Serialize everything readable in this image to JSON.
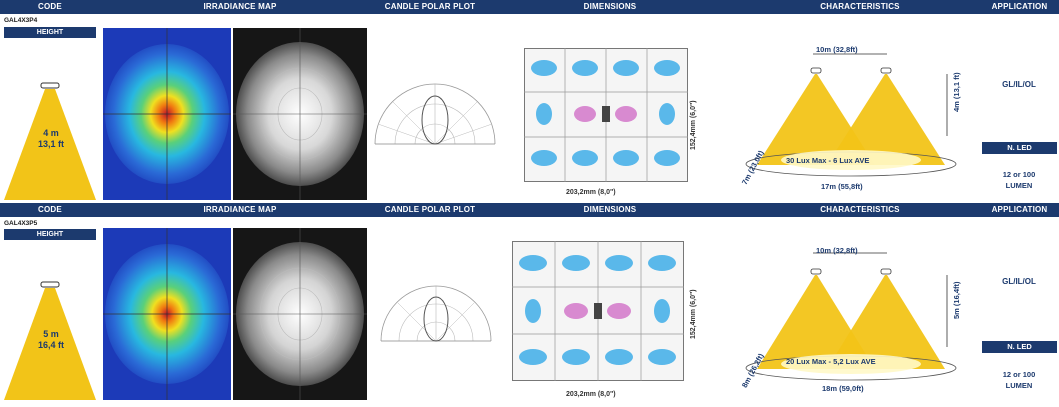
{
  "headers": {
    "code": "CODE",
    "irradiance": "IRRADIANCE MAP",
    "candle": "CANDLE POLAR PLOT",
    "dimensions": "DIMENSIONS",
    "characteristics": "CHARACTERISTICS",
    "application": "APPLICATION"
  },
  "colors": {
    "header": "#1c3a6e",
    "beam": "#f2c418",
    "accent_text": "#1c3a6e"
  },
  "rows": [
    {
      "code": "GAL4X3P4",
      "height_label": "HEIGHT",
      "height_m": "4 m",
      "height_ft": "13,1 ft",
      "dim_width": "203,2mm (8,0\")",
      "dim_height": "152,4mm (6,0\")",
      "char_spacing": "10m (32,8ft)",
      "char_height": "4m (13,1 ft)",
      "char_diag": "7m (23,0ft)",
      "char_lux": "30 Lux Max - 6 Lux AVE",
      "char_base": "17m (55,8ft)",
      "app_code": "GL/IL/OL",
      "led_label": "N. LED",
      "lumen_line1": "12 or 100",
      "lumen_line2": "LUMEN"
    },
    {
      "code": "GAL4X3P5",
      "height_label": "HEIGHT",
      "height_m": "5 m",
      "height_ft": "16,4 ft",
      "dim_width": "203,2mm (8,0\")",
      "dim_height": "152,4mm (6,0\")",
      "char_spacing": "10m (32,8ft)",
      "char_height": "5m (16,4ft)",
      "char_diag": "8m (26,2ft)",
      "char_lux": "20 Lux Max - 5,2 Lux AVE",
      "char_base": "18m (59,0ft)",
      "app_code": "GL/IL/OL",
      "led_label": "N. LED",
      "lumen_line1": "12 or 100",
      "lumen_line2": "LUMEN"
    }
  ]
}
